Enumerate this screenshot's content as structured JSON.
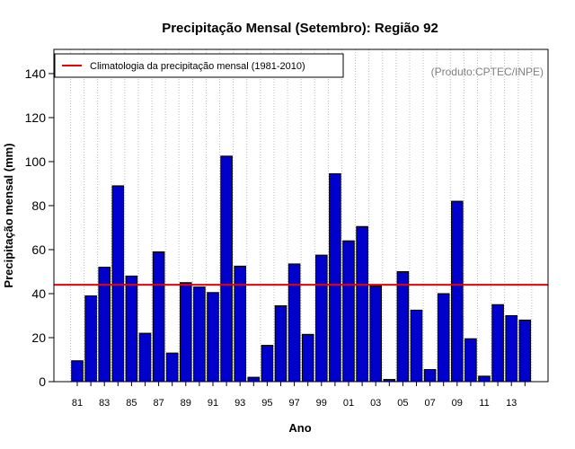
{
  "chart_data": {
    "type": "bar",
    "title": "Precipitação Mensal (Setembro): Região 92",
    "xlabel": "Ano",
    "ylabel": "Precipitação mensal (mm)",
    "ylim": [
      0,
      150
    ],
    "yticks": [
      0,
      20,
      40,
      60,
      80,
      100,
      120,
      140
    ],
    "categories": [
      "81",
      "82",
      "83",
      "84",
      "85",
      "86",
      "87",
      "88",
      "89",
      "90",
      "91",
      "92",
      "93",
      "94",
      "95",
      "96",
      "97",
      "98",
      "99",
      "00",
      "01",
      "02",
      "03",
      "04",
      "05",
      "06",
      "07",
      "08",
      "09",
      "10",
      "11",
      "12",
      "13",
      "14"
    ],
    "xtick_labels": [
      "81",
      "83",
      "85",
      "87",
      "89",
      "91",
      "93",
      "95",
      "97",
      "99",
      "01",
      "03",
      "05",
      "07",
      "09",
      "11",
      "13"
    ],
    "values": [
      9.5,
      39,
      52,
      89,
      48,
      22,
      59,
      13,
      45,
      43,
      40.5,
      102.5,
      52.5,
      2,
      16.5,
      34.5,
      53.5,
      21.5,
      57.5,
      94.5,
      64,
      70.5,
      43.5,
      1,
      50,
      32.5,
      5.5,
      40,
      82,
      19.5,
      2.5,
      35,
      30,
      28
    ],
    "climatology": 44,
    "legend": {
      "label": "Climatologia da precipitação mensal (1981-2010)",
      "placement": "top-left"
    },
    "annotation": "(Produto:CPTEC/INPE)",
    "grid": "vertical-dotted"
  },
  "colors": {
    "bar": "#0000cc",
    "bar_edge": "#000000",
    "climatology": "#ee0000",
    "grid": "#bbbbbb",
    "annotation": "#808080"
  }
}
